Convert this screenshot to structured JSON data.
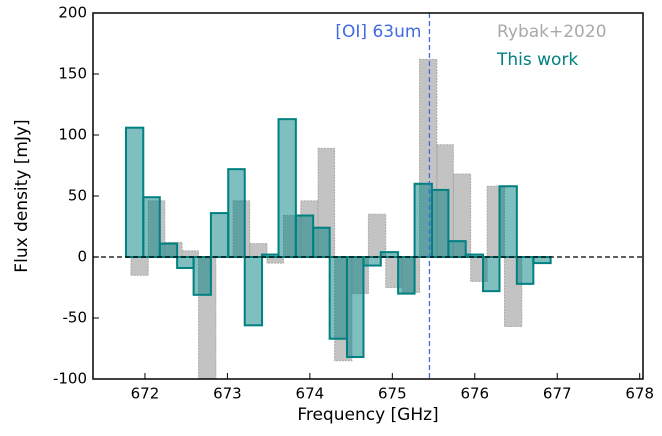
{
  "chart_data": {
    "type": "step-histogram",
    "xlabel": "Frequency [GHz]",
    "ylabel": "Flux density [mJy]",
    "xlim": [
      671.37,
      678.04
    ],
    "ylim": [
      -100,
      200
    ],
    "xticks": [
      672,
      673,
      674,
      675,
      676,
      677,
      678
    ],
    "yticks": [
      -100,
      -50,
      0,
      50,
      100,
      150,
      200
    ],
    "annotation": {
      "text": "[OI] 63um",
      "x": 675.45,
      "color": "#4169e1"
    },
    "series": [
      {
        "name": "Rybak+2020",
        "color": "#a9a9a9",
        "bins": [
          671.83,
          672.04,
          672.24,
          672.45,
          672.65,
          672.86,
          673.07,
          673.27,
          673.48,
          673.68,
          673.89,
          674.1,
          674.3,
          674.51,
          674.71,
          674.92,
          675.12,
          675.33,
          675.54,
          675.74,
          675.95,
          676.15,
          676.36,
          676.57
        ],
        "values": [
          -15,
          46,
          12,
          5,
          -100,
          0,
          46,
          11,
          -5,
          34,
          46,
          89,
          -85,
          -30,
          35,
          -25,
          -29,
          162,
          92,
          68,
          -20,
          58,
          -57
        ]
      },
      {
        "name": "This work",
        "color": "#008080",
        "bins": [
          671.77,
          671.98,
          672.18,
          672.39,
          672.59,
          672.8,
          673.01,
          673.21,
          673.42,
          673.62,
          673.83,
          674.04,
          674.24,
          674.45,
          674.65,
          674.86,
          675.07,
          675.27,
          675.48,
          675.68,
          675.89,
          676.1,
          676.3,
          676.51,
          676.71,
          676.92
        ],
        "values": [
          106,
          49,
          11,
          -9,
          -31,
          36,
          72,
          -56,
          2,
          113,
          34,
          24,
          -67,
          -82,
          -7,
          4,
          -30,
          60,
          55,
          13,
          2,
          -28,
          58,
          -22,
          -5
        ]
      }
    ]
  }
}
